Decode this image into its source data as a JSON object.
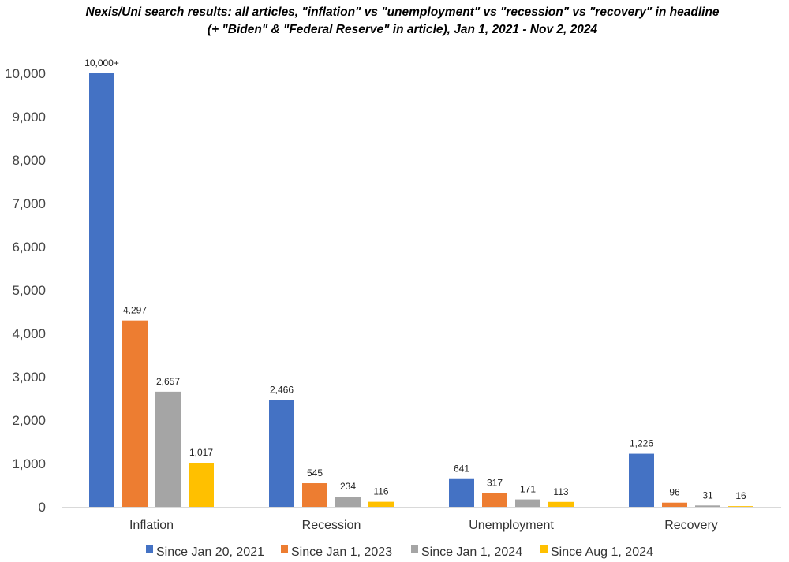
{
  "chart_data": {
    "type": "bar",
    "title": "Nexis/Uni search results: all articles, \"inflation\" vs \"unemployment\" vs \"recession\" vs \"recovery\" in headline",
    "subtitle": "(+ \"Biden\" & \"Federal Reserve\" in article), Jan 1, 2021 - Nov 2, 2024",
    "xlabel": "",
    "ylabel": "",
    "categories": [
      "Inflation",
      "Recession",
      "Unemployment",
      "Recovery"
    ],
    "ylim": [
      0,
      10000
    ],
    "yticks": [
      "0",
      "1,000",
      "2,000",
      "3,000",
      "4,000",
      "5,000",
      "6,000",
      "7,000",
      "8,000",
      "9,000",
      "10,000"
    ],
    "grid": false,
    "legend_position": "bottom",
    "series": [
      {
        "name": "Since Jan 20, 2021",
        "color": "#4472C4",
        "values": [
          10000,
          2466,
          641,
          1226
        ],
        "labels": [
          "10,000+",
          "2,466",
          "641",
          "1,226"
        ]
      },
      {
        "name": "Since Jan 1, 2023",
        "color": "#ED7D31",
        "values": [
          4297,
          545,
          317,
          96
        ],
        "labels": [
          "4,297",
          "545",
          "317",
          "96"
        ]
      },
      {
        "name": "Since Jan 1, 2024",
        "color": "#A5A5A5",
        "values": [
          2657,
          234,
          171,
          31
        ],
        "labels": [
          "2,657",
          "234",
          "171",
          "31"
        ]
      },
      {
        "name": "Since Aug 1, 2024",
        "color": "#FFC000",
        "values": [
          1017,
          116,
          113,
          16
        ],
        "labels": [
          "1,017",
          "116",
          "113",
          "16"
        ]
      }
    ]
  }
}
